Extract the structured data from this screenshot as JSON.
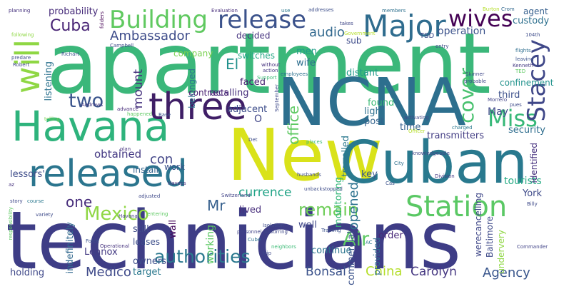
{
  "words": [
    {
      "text": "apartment",
      "color": "#3bb77a"
    },
    {
      "text": "technicians",
      "color": "#3e3d86"
    },
    {
      "text": "NCNA",
      "color": "#2d6f8e"
    },
    {
      "text": "New",
      "color": "#d9e21a"
    },
    {
      "text": "Cuban",
      "color": "#29798e"
    },
    {
      "text": "Havana",
      "color": "#2eb37c"
    },
    {
      "text": "released",
      "color": "#2b758e"
    },
    {
      "text": "three",
      "color": "#3f1e66"
    },
    {
      "text": "will",
      "color": "#8fd744"
    },
    {
      "text": "Major",
      "color": "#2f6c8e"
    },
    {
      "text": "Building",
      "color": "#60c960"
    },
    {
      "text": "release",
      "color": "#3b528b"
    },
    {
      "text": "Station",
      "color": "#5ac864"
    },
    {
      "text": "Miss",
      "color": "#37b878"
    },
    {
      "text": "Stacey",
      "color": "#3f4788"
    },
    {
      "text": "wives",
      "color": "#440154"
    },
    {
      "text": "Mexico",
      "color": "#8fd744"
    },
    {
      "text": "authorities",
      "color": "#2a788e"
    },
    {
      "text": "remain",
      "color": "#6ece58"
    },
    {
      "text": "Air",
      "color": "#5cc863"
    },
    {
      "text": "cover",
      "color": "#48c16e"
    },
    {
      "text": "two",
      "color": "#3a548c"
    },
    {
      "text": "one",
      "color": "#472d7b"
    },
    {
      "text": "Cuba",
      "color": "#482475"
    },
    {
      "text": "Ambassador",
      "color": "#3e4c8a"
    },
    {
      "text": "office",
      "color": "#5ec962"
    },
    {
      "text": "audio",
      "color": "#31688e"
    },
    {
      "text": "Medico",
      "color": "#3e4989"
    },
    {
      "text": "China",
      "color": "#b5de2b"
    },
    {
      "text": "Agency",
      "color": "#39568c"
    },
    {
      "text": "Carolyn",
      "color": "#453781"
    },
    {
      "text": "Bonsal",
      "color": "#3b528b"
    },
    {
      "text": "Mr",
      "color": "#355f8d"
    },
    {
      "text": "El",
      "color": "#21918c"
    },
    {
      "text": "opened",
      "color": "#2c728e"
    },
    {
      "text": "currence",
      "color": "#20a386"
    },
    {
      "text": "con",
      "color": "#414487"
    },
    {
      "text": "obtained",
      "color": "#443983"
    },
    {
      "text": "mount",
      "color": "#46327e"
    },
    {
      "text": "May",
      "color": "#3f4889"
    },
    {
      "text": "operation",
      "color": "#3b528b"
    },
    {
      "text": "custody",
      "color": "#2d708e"
    },
    {
      "text": "agent",
      "color": "#355f8d"
    },
    {
      "text": "probability",
      "color": "#472c7a"
    },
    {
      "text": "decided",
      "color": "#46337f"
    },
    {
      "text": "sub",
      "color": "#3e4c8a"
    },
    {
      "text": "men",
      "color": "#1f9e89"
    },
    {
      "text": "wife",
      "color": "#2e6e8e"
    },
    {
      "text": "switches",
      "color": "#22a785"
    },
    {
      "text": "company",
      "color": "#7ad151"
    },
    {
      "text": "distant",
      "color": "#1f9a8a"
    },
    {
      "text": "belonged",
      "color": "#2c738e"
    },
    {
      "text": "faced",
      "color": "#482173"
    },
    {
      "text": "recalling",
      "color": "#472e7c"
    },
    {
      "text": "contracts",
      "color": "#481f70"
    },
    {
      "text": "found",
      "color": "#3bbb75"
    },
    {
      "text": "light",
      "color": "#2d708e"
    },
    {
      "text": "post",
      "color": "#33638d"
    },
    {
      "text": "third",
      "color": "#3c508b"
    },
    {
      "text": "security",
      "color": "#2e6d8e"
    },
    {
      "text": "confinement",
      "color": "#20928c"
    },
    {
      "text": "adjacent",
      "color": "#3d4d8a"
    },
    {
      "text": "O",
      "color": "#404688"
    },
    {
      "text": "time",
      "color": "#34608d"
    },
    {
      "text": "transmitters",
      "color": "#433d84"
    },
    {
      "text": "travelled",
      "color": "#2a788e"
    },
    {
      "text": "key",
      "color": "#39558c"
    },
    {
      "text": "tourists",
      "color": "#24aa83"
    },
    {
      "text": "York",
      "color": "#3e4a89"
    },
    {
      "text": "monitoring",
      "color": "#35b779"
    },
    {
      "text": "commercial",
      "color": "#3b528b"
    },
    {
      "text": "order",
      "color": "#482979"
    },
    {
      "text": "continue",
      "color": "#2b748e"
    },
    {
      "text": "provided",
      "color": "#2f6b8e"
    },
    {
      "text": "well",
      "color": "#3f4788"
    },
    {
      "text": "lived",
      "color": "#472d7b"
    },
    {
      "text": "wall",
      "color": "#46085c"
    },
    {
      "text": "working",
      "color": "#5cc863"
    },
    {
      "text": "still",
      "color": "#3e4989"
    },
    {
      "text": "leases",
      "color": "#3d4e8a"
    },
    {
      "text": "Lennox",
      "color": "#443a83"
    },
    {
      "text": "owners",
      "color": "#3d4e8a"
    },
    {
      "text": "target",
      "color": "#2a788e"
    },
    {
      "text": "holding",
      "color": "#3f4889"
    },
    {
      "text": "indefinitely",
      "color": "#31688e"
    },
    {
      "text": "lessors'",
      "color": "#3e4c8a"
    },
    {
      "text": "install",
      "color": "#33638d"
    },
    {
      "text": "work",
      "color": "#3b528b"
    },
    {
      "text": "listening",
      "color": "#2c728e"
    },
    {
      "text": "identified",
      "color": "#46307e"
    },
    {
      "text": "werecancelling",
      "color": "#3f4788"
    },
    {
      "text": "Baltimore",
      "color": "#3e4a89"
    },
    {
      "text": "undervery",
      "color": "#8fd744"
    },
    {
      "text": "Commander",
      "color": "#404387"
    },
    {
      "text": "TSD",
      "color": "#3e4c8a"
    },
    {
      "text": "Evaluation",
      "color": "#472d7b"
    },
    {
      "text": "planning",
      "color": "#46327e"
    },
    {
      "text": "following",
      "color": "#8fd744"
    },
    {
      "text": "predare",
      "color": "#3e4c8a"
    },
    {
      "text": "Robert",
      "color": "#3f4889"
    },
    {
      "text": "Richart",
      "color": "#3b528b"
    },
    {
      "text": "folders",
      "color": "#440154"
    },
    {
      "text": "Campbell",
      "color": "#3e4a89"
    },
    {
      "text": "Andrews",
      "color": "#443a83"
    },
    {
      "text": "telling",
      "color": "#7ad151"
    },
    {
      "text": "advance",
      "color": "#472d7b"
    },
    {
      "text": "happened",
      "color": "#5ec962"
    },
    {
      "text": "Base",
      "color": "#3b528b"
    },
    {
      "text": "without",
      "color": "#46327e"
    },
    {
      "text": "action",
      "color": "#443983"
    },
    {
      "text": "employees",
      "color": "#2c728e"
    },
    {
      "text": "Support",
      "color": "#3bbb75"
    },
    {
      "text": "September",
      "color": "#3e4989"
    },
    {
      "text": "use",
      "color": "#2a788e"
    },
    {
      "text": "addresses",
      "color": "#3d4e8a"
    },
    {
      "text": "takes",
      "color": "#3f4788"
    },
    {
      "text": "members",
      "color": "#2d708e"
    },
    {
      "text": "Burton",
      "color": "#b5de2b"
    },
    {
      "text": "Crom",
      "color": "#31688e"
    },
    {
      "text": "entry",
      "color": "#3e4c8a"
    },
    {
      "text": "Skinner",
      "color": "#3f4889"
    },
    {
      "text": "probable",
      "color": "#3e4a89"
    },
    {
      "text": "flights",
      "color": "#2e6e8e"
    },
    {
      "text": "leaving",
      "color": "#3b528b"
    },
    {
      "text": "Kenneth",
      "color": "#443a83"
    },
    {
      "text": "TED",
      "color": "#5ec962"
    },
    {
      "text": "Morrero",
      "color": "#404387"
    },
    {
      "text": "pues",
      "color": "#3e4989"
    },
    {
      "text": "charged",
      "color": "#2a788e"
    },
    {
      "text": "Officer",
      "color": "#b5de2b"
    },
    {
      "text": "Det",
      "color": "#3e4c8a"
    },
    {
      "text": "plan",
      "color": "#46327e"
    },
    {
      "text": "places",
      "color": "#3bbb75"
    },
    {
      "text": "knowledgeable",
      "color": "#3f4788"
    },
    {
      "text": "City",
      "color": "#2d708e"
    },
    {
      "text": "husbands",
      "color": "#3e4a89"
    },
    {
      "text": "Division",
      "color": "#443983"
    },
    {
      "text": "Cas",
      "color": "#3b528b"
    },
    {
      "text": "Havecs",
      "color": "#472d7b"
    },
    {
      "text": "adjusted",
      "color": "#3e4989"
    },
    {
      "text": "Switzerland",
      "color": "#404387"
    },
    {
      "text": "unbackstopped",
      "color": "#3e4c8a"
    },
    {
      "text": "story",
      "color": "#3f4889"
    },
    {
      "text": "course",
      "color": "#2a788e"
    },
    {
      "text": "variety",
      "color": "#3e4a89"
    },
    {
      "text": "entering",
      "color": "#5ec962"
    },
    {
      "text": "Havana",
      "color": "#443a83"
    },
    {
      "text": "Force",
      "color": "#3b528b"
    },
    {
      "text": "Operational",
      "color": "#46327e"
    },
    {
      "text": "Cube",
      "color": "#2d708e"
    },
    {
      "text": "neighbors",
      "color": "#3bbb75"
    },
    {
      "text": "trip",
      "color": "#3e4989"
    },
    {
      "text": "personnel",
      "color": "#404387"
    },
    {
      "text": "Isolation",
      "color": "#3e4c8a"
    },
    {
      "text": "Assurring",
      "color": "#3f4788"
    },
    {
      "text": "Training",
      "color": "#3b528b"
    },
    {
      "text": "ASD",
      "color": "#443983"
    },
    {
      "text": "AC",
      "color": "#2a788e"
    },
    {
      "text": "Billy",
      "color": "#3e4a89"
    },
    {
      "text": "responsibility",
      "color": "#5ec962"
    },
    {
      "text": "az",
      "color": "#46327e"
    },
    {
      "text": "activating",
      "color": "#3e4989"
    },
    {
      "text": "Government",
      "color": "#b5de2b"
    },
    {
      "text": "104th",
      "color": "#3e4c8a"
    }
  ]
}
